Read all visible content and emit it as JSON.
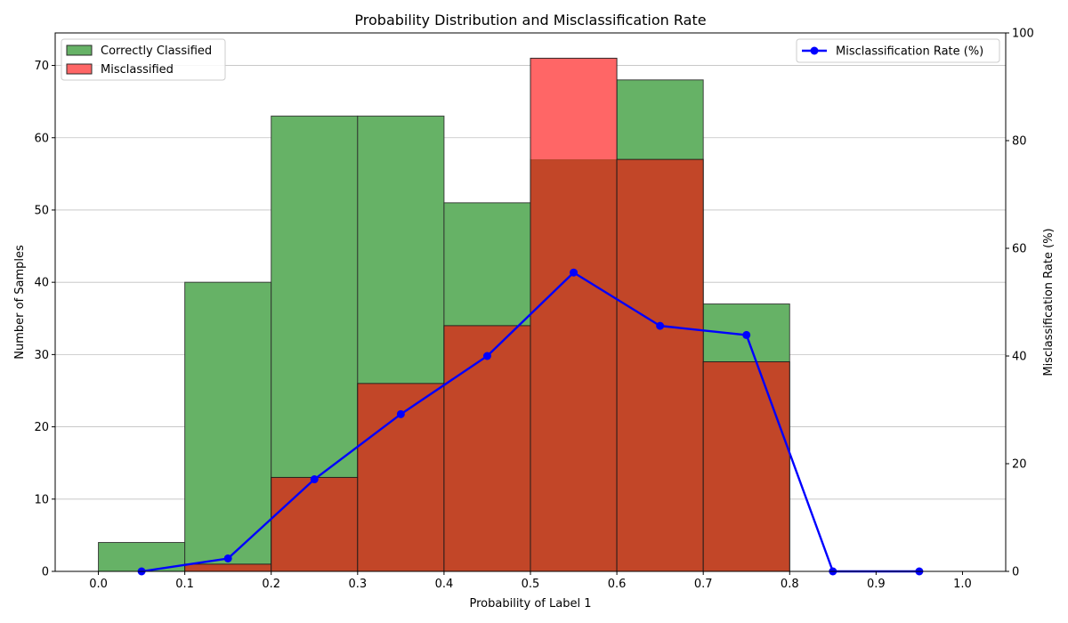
{
  "chart_data": {
    "type": "bar",
    "title": "Probability Distribution and Misclassification Rate",
    "xlabel": "Probability of Label 1",
    "ylabel": "Number of Samples",
    "y2label": "Misclassification Rate (%)",
    "xlim": [
      -0.05,
      1.05
    ],
    "ylim": [
      0,
      74.5
    ],
    "y2lim": [
      0,
      100
    ],
    "xticks": [
      "0.0",
      "0.1",
      "0.2",
      "0.3",
      "0.4",
      "0.5",
      "0.6",
      "0.7",
      "0.8",
      "0.9",
      "1.0"
    ],
    "yticks": [
      "0",
      "10",
      "20",
      "30",
      "40",
      "50",
      "60",
      "70"
    ],
    "y2ticks": [
      "0",
      "20",
      "40",
      "60",
      "80",
      "100"
    ],
    "grid": "y",
    "bins": [
      [
        0.0,
        0.1
      ],
      [
        0.1,
        0.2
      ],
      [
        0.2,
        0.3
      ],
      [
        0.3,
        0.4
      ],
      [
        0.4,
        0.5
      ],
      [
        0.5,
        0.6
      ],
      [
        0.6,
        0.7
      ],
      [
        0.7,
        0.8
      ],
      [
        0.8,
        0.9
      ],
      [
        0.9,
        1.0
      ]
    ],
    "series": [
      {
        "name": "Correctly Classified",
        "kind": "bar",
        "color": "#66b266",
        "values": [
          4,
          40,
          63,
          63,
          51,
          57,
          68,
          37,
          0,
          0
        ]
      },
      {
        "name": "Misclassified",
        "kind": "bar",
        "color": "#ff6666",
        "values": [
          0,
          1,
          13,
          26,
          34,
          71,
          57,
          29,
          0,
          0
        ]
      },
      {
        "name": "Misclassification Rate (%)",
        "kind": "line",
        "axis": "right",
        "color": "#0000ff",
        "x": [
          0.05,
          0.15,
          0.25,
          0.35,
          0.45,
          0.55,
          0.65,
          0.75,
          0.85,
          0.95
        ],
        "values": [
          0,
          2.4,
          17.1,
          29.2,
          40.0,
          55.5,
          45.6,
          43.9,
          0,
          0
        ]
      }
    ],
    "overlap_color": "#c24628",
    "legend_left": [
      "Correctly Classified",
      "Misclassified"
    ],
    "legend_right": [
      "Misclassification Rate (%)"
    ],
    "legend_placement": [
      "top-left",
      "top-right"
    ]
  }
}
